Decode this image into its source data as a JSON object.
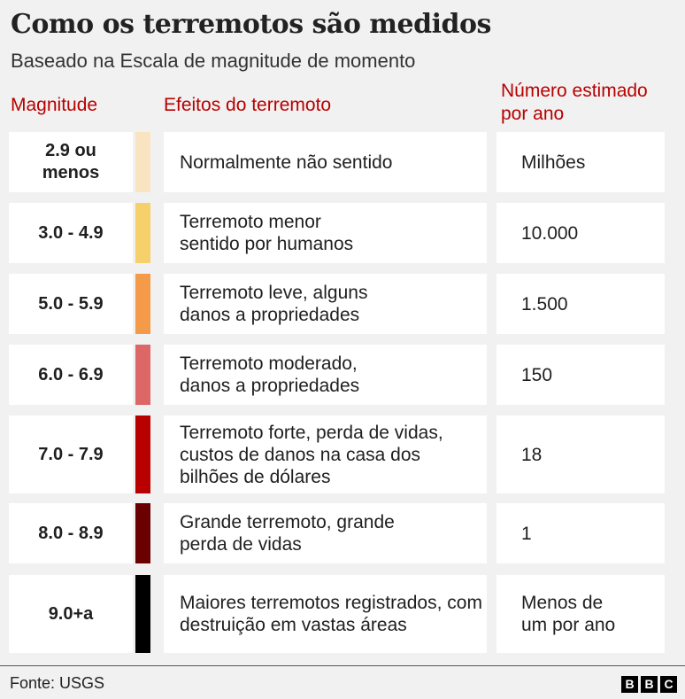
{
  "title": "Como os terremotos são medidos",
  "subtitle": "Baseado na Escala de magnitude de momento",
  "columns": {
    "magnitude": "Magnitude",
    "effects": "Efeitos do terremoto",
    "count": "Número estimado por ano"
  },
  "chart_data": {
    "type": "table",
    "columns": [
      "Magnitude",
      "Efeitos do terremoto",
      "Número estimado por ano"
    ],
    "rows": [
      {
        "magnitude": "2.9 ou menos",
        "effect": "Normalmente não sentido",
        "count": "Milhões",
        "color": "#f9e3c0"
      },
      {
        "magnitude": "3.0 - 4.9",
        "effect": "Terremoto menor sentido por humanos",
        "count": "10.000",
        "color": "#f6d06b"
      },
      {
        "magnitude": "5.0 - 5.9",
        "effect": "Terremoto leve, alguns danos a propriedades",
        "count": "1.500",
        "color": "#f49a49"
      },
      {
        "magnitude": "6.0 - 6.9",
        "effect": "Terremoto moderado, danos a propriedades",
        "count": "150",
        "color": "#dd6666"
      },
      {
        "magnitude": "7.0 - 7.9",
        "effect": "Terremoto forte, perda de vidas, custos de danos na casa dos bilhões de dólares",
        "count": "18",
        "color": "#b80000"
      },
      {
        "magnitude": "8.0 - 8.9",
        "effect": "Grande terremoto, grande perda de vidas",
        "count": "1",
        "color": "#6b0000"
      },
      {
        "magnitude": "9.0+a",
        "effect": "Maiores terremotos registrados, com destruição em vastas áreas",
        "count": "Menos de um por ano",
        "color": "#000000"
      }
    ]
  },
  "footer": {
    "source": "Fonte: USGS",
    "logo": [
      "B",
      "B",
      "C"
    ]
  }
}
